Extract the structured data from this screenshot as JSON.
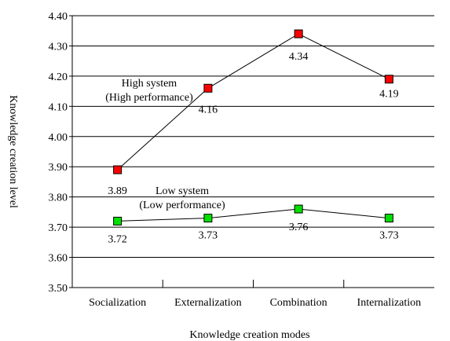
{
  "chart_data": {
    "type": "line",
    "title": "",
    "xlabel": "Knowledge creation modes",
    "ylabel": "Knowledge creation level",
    "categories": [
      "Socialization",
      "Externalization",
      "Combination",
      "Internalization"
    ],
    "ylim": [
      3.5,
      4.4
    ],
    "yticks": [
      "3.50",
      "3.60",
      "3.70",
      "3.80",
      "3.90",
      "4.00",
      "4.10",
      "4.20",
      "4.30",
      "4.40"
    ],
    "grid": true,
    "legend": "none",
    "series": [
      {
        "annotation": [
          "High system",
          "(High performance)"
        ],
        "values": [
          3.89,
          4.16,
          4.34,
          4.19
        ],
        "labels": [
          "3.89",
          "4.16",
          "4.34",
          "4.19"
        ],
        "color": "#ff0000"
      },
      {
        "annotation": [
          "Low system",
          "(Low performance)"
        ],
        "values": [
          3.72,
          3.73,
          3.76,
          3.73
        ],
        "labels": [
          "3.72",
          "3.73",
          "3.76",
          "3.73"
        ],
        "color": "#00e000"
      }
    ]
  }
}
